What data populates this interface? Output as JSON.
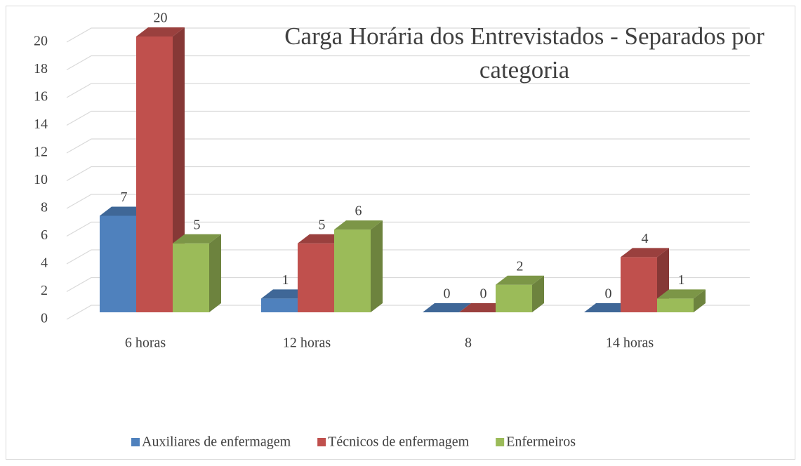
{
  "chart_data": {
    "type": "bar3d",
    "title": "Carga Horária dos Entrevistados - Separados por categoria",
    "categories": [
      "6 horas",
      "12 horas",
      "8",
      "14 horas"
    ],
    "series": [
      {
        "name": "Auxiliares de enfermagem",
        "color": "#4f81bd",
        "values": [
          7,
          1,
          0,
          0
        ]
      },
      {
        "name": "Técnicos de enfermagem",
        "color": "#c0504d",
        "values": [
          20,
          5,
          0,
          4
        ]
      },
      {
        "name": "Enfermeiros",
        "color": "#9bbb59",
        "values": [
          5,
          6,
          2,
          1
        ]
      }
    ],
    "ylim": [
      0,
      20
    ],
    "yticks": [
      0,
      2,
      4,
      6,
      8,
      10,
      12,
      14,
      16,
      18,
      20
    ],
    "grid": true,
    "legend": "bottom"
  }
}
